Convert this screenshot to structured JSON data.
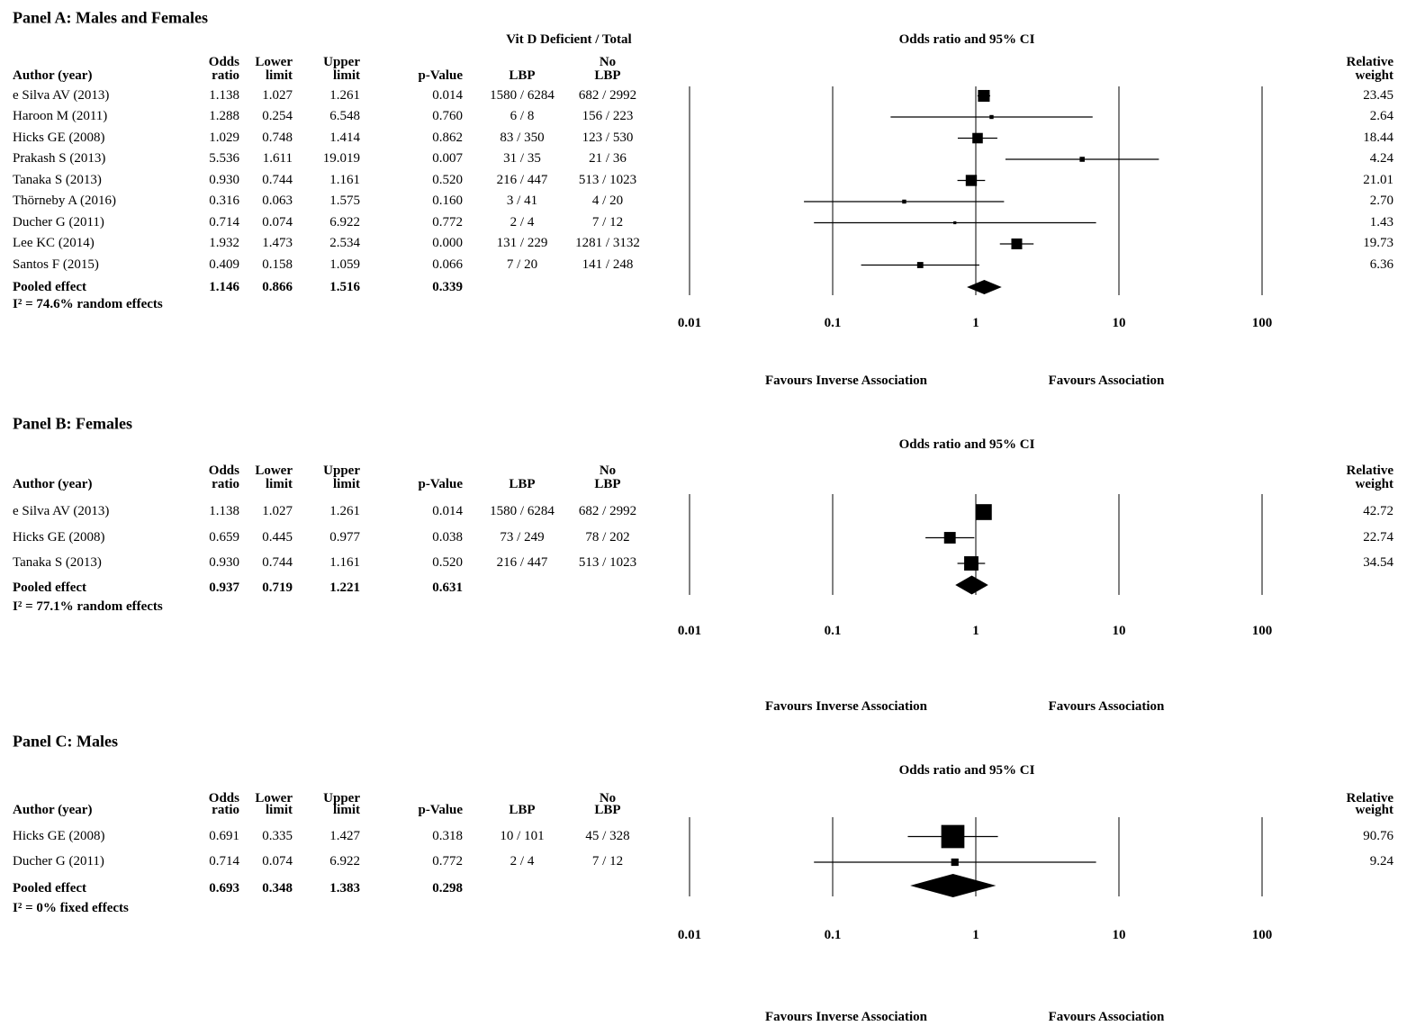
{
  "chart_data": {
    "type": "forest",
    "scale": "log10",
    "axis_ticks": [
      "0.01",
      "0.1",
      "1",
      "10",
      "100"
    ],
    "plot_header": "Odds ratio and 95% CI",
    "favours_left": "Favours Inverse Association",
    "favours_right": "Favours Association",
    "columns": {
      "author": "Author (year)",
      "odds_ratio": [
        "Odds",
        "ratio"
      ],
      "lower": [
        "Lower",
        "limit"
      ],
      "upper": [
        "Upper",
        "limit"
      ],
      "p_value": "p-Value",
      "lbp": "LBP",
      "no_lbp": [
        "No",
        "LBP"
      ],
      "weight": [
        "Relative",
        "weight"
      ]
    },
    "panels": [
      {
        "title": "Panel A: Males and Females",
        "group_header": "Vit D Deficient / Total",
        "studies": [
          {
            "author": "e Silva AV (2013)",
            "odds_ratio": "1.138",
            "lower": "1.027",
            "upper": "1.261",
            "p_value": "0.014",
            "lbp": "1580 / 6284",
            "no_lbp": "682 / 2992",
            "weight": "23.45"
          },
          {
            "author": "Haroon M (2011)",
            "odds_ratio": "1.288",
            "lower": "0.254",
            "upper": "6.548",
            "p_value": "0.760",
            "lbp": "6 / 8",
            "no_lbp": "156 / 223",
            "weight": "2.64"
          },
          {
            "author": "Hicks GE (2008)",
            "odds_ratio": "1.029",
            "lower": "0.748",
            "upper": "1.414",
            "p_value": "0.862",
            "lbp": "83 / 350",
            "no_lbp": "123 / 530",
            "weight": "18.44"
          },
          {
            "author": "Prakash S (2013)",
            "odds_ratio": "5.536",
            "lower": "1.611",
            "upper": "19.019",
            "p_value": "0.007",
            "lbp": "31 / 35",
            "no_lbp": "21 / 36",
            "weight": "4.24"
          },
          {
            "author": "Tanaka  S (2013)",
            "odds_ratio": "0.930",
            "lower": "0.744",
            "upper": "1.161",
            "p_value": "0.520",
            "lbp": "216 / 447",
            "no_lbp": "513 / 1023",
            "weight": "21.01"
          },
          {
            "author": "Thörneby A (2016)",
            "odds_ratio": "0.316",
            "lower": "0.063",
            "upper": "1.575",
            "p_value": "0.160",
            "lbp": "3 / 41",
            "no_lbp": "4 / 20",
            "weight": "2.70"
          },
          {
            "author": "Ducher G (2011)",
            "odds_ratio": "0.714",
            "lower": "0.074",
            "upper": "6.922",
            "p_value": "0.772",
            "lbp": "2 / 4",
            "no_lbp": "7 / 12",
            "weight": "1.43"
          },
          {
            "author": "Lee KC (2014)",
            "odds_ratio": "1.932",
            "lower": "1.473",
            "upper": "2.534",
            "p_value": "0.000",
            "lbp": "131 / 229",
            "no_lbp": "1281 / 3132",
            "weight": "19.73"
          },
          {
            "author": "Santos F (2015)",
            "odds_ratio": "0.409",
            "lower": "0.158",
            "upper": "1.059",
            "p_value": "0.066",
            "lbp": "7 / 20",
            "no_lbp": "141 / 248",
            "weight": "6.36"
          }
        ],
        "pooled": {
          "label": "Pooled effect",
          "odds_ratio": "1.146",
          "lower": "0.866",
          "upper": "1.516",
          "p_value": "0.339"
        },
        "effects_model_note": "I² = 74.6% random effects"
      },
      {
        "title": "Panel B: Females",
        "group_header": "",
        "studies": [
          {
            "author": "e Silva AV (2013)",
            "odds_ratio": "1.138",
            "lower": "1.027",
            "upper": "1.261",
            "p_value": "0.014",
            "lbp": "1580 / 6284",
            "no_lbp": "682 / 2992",
            "weight": "42.72"
          },
          {
            "author": "Hicks GE (2008)",
            "odds_ratio": "0.659",
            "lower": "0.445",
            "upper": "0.977",
            "p_value": "0.038",
            "lbp": "73 / 249",
            "no_lbp": "78 / 202",
            "weight": "22.74"
          },
          {
            "author": "Tanaka  S (2013)",
            "odds_ratio": "0.930",
            "lower": "0.744",
            "upper": "1.161",
            "p_value": "0.520",
            "lbp": "216 / 447",
            "no_lbp": "513 / 1023",
            "weight": "34.54"
          }
        ],
        "pooled": {
          "label": "Pooled effect",
          "odds_ratio": "0.937",
          "lower": "0.719",
          "upper": "1.221",
          "p_value": "0.631"
        },
        "effects_model_note": "I² = 77.1% random effects"
      },
      {
        "title": "Panel C: Males",
        "group_header": "",
        "studies": [
          {
            "author": "Hicks GE (2008)",
            "odds_ratio": "0.691",
            "lower": "0.335",
            "upper": "1.427",
            "p_value": "0.318",
            "lbp": "10 / 101",
            "no_lbp": "45 / 328",
            "weight": "90.76"
          },
          {
            "author": "Ducher G (2011)",
            "odds_ratio": "0.714",
            "lower": "0.074",
            "upper": "6.922",
            "p_value": "0.772",
            "lbp": "2 / 4",
            "no_lbp": "7 / 12",
            "weight": "9.24"
          }
        ],
        "pooled": {
          "label": "Pooled effect",
          "odds_ratio": "0.693",
          "lower": "0.348",
          "upper": "1.383",
          "p_value": "0.298"
        },
        "effects_model_note": "I² = 0% fixed effects"
      }
    ],
    "colors": {
      "ink": "#000000",
      "background": "#ffffff"
    }
  }
}
